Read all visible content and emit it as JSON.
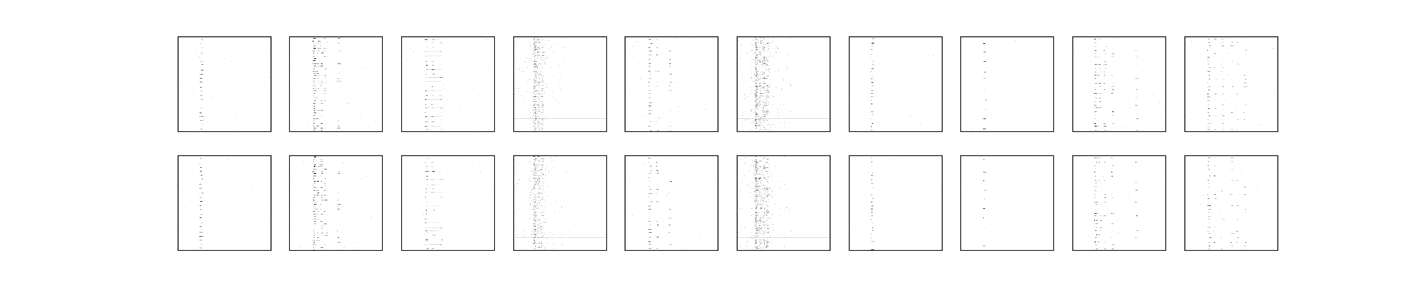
{
  "figure": {
    "background": "#ffffff",
    "frame_color": "#000000",
    "ink_color": "#000000"
  },
  "chart_data": {
    "type": "heatmap",
    "description_layout": "grid",
    "rows": 2,
    "cols": 10,
    "colormap": "gray_r",
    "axes_ticks": "none",
    "grid": false,
    "legend": "none",
    "panels": [
      {
        "id": "r0c0",
        "row": 0,
        "col": 0,
        "pattern": "single-column",
        "columns": [
          0.24
        ],
        "rows_count": 22,
        "intensity": 0.55,
        "noise": 0.02
      },
      {
        "id": "r0c1",
        "row": 0,
        "col": 1,
        "pattern": "multi-column-dense",
        "columns": [
          0.26,
          0.3,
          0.34,
          0.38,
          0.52
        ],
        "rows_count": 38,
        "intensity": 0.6,
        "noise": 0.03
      },
      {
        "id": "r0c2",
        "row": 0,
        "col": 2,
        "pattern": "column-with-trail",
        "columns": [
          0.26,
          0.33,
          0.42
        ],
        "rows_count": 22,
        "intensity": 0.5,
        "noise": 0.02
      },
      {
        "id": "r0c3",
        "row": 0,
        "col": 3,
        "pattern": "noise-column",
        "columns": [
          0.22,
          0.26,
          0.3
        ],
        "rows_count": 60,
        "intensity": 0.35,
        "noise": 0.12
      },
      {
        "id": "r0c4",
        "row": 0,
        "col": 4,
        "pattern": "multi-column",
        "columns": [
          0.26,
          0.34,
          0.48
        ],
        "rows_count": 24,
        "intensity": 0.55,
        "noise": 0.02
      },
      {
        "id": "r0c5",
        "row": 0,
        "col": 5,
        "pattern": "noise-column-heavy",
        "columns": [
          0.2,
          0.24,
          0.28,
          0.32
        ],
        "rows_count": 70,
        "intensity": 0.4,
        "noise": 0.18
      },
      {
        "id": "r0c6",
        "row": 0,
        "col": 6,
        "pattern": "single-column",
        "columns": [
          0.24
        ],
        "rows_count": 26,
        "intensity": 0.5,
        "noise": 0.01
      },
      {
        "id": "r0c7",
        "row": 0,
        "col": 7,
        "pattern": "single-column-sparse",
        "columns": [
          0.25
        ],
        "rows_count": 10,
        "intensity": 0.65,
        "noise": 0.005
      },
      {
        "id": "r0c8",
        "row": 0,
        "col": 8,
        "pattern": "multi-column",
        "columns": [
          0.24,
          0.28,
          0.34,
          0.42,
          0.68
        ],
        "rows_count": 26,
        "intensity": 0.55,
        "noise": 0.02
      },
      {
        "id": "r0c9",
        "row": 0,
        "col": 9,
        "pattern": "multi-column-wide",
        "columns": [
          0.25,
          0.32,
          0.4,
          0.5,
          0.56,
          0.64
        ],
        "rows_count": 26,
        "intensity": 0.45,
        "noise": 0.02
      },
      {
        "id": "r1c0",
        "row": 1,
        "col": 0,
        "pattern": "single-column",
        "columns": [
          0.24
        ],
        "rows_count": 22,
        "intensity": 0.55,
        "noise": 0.02
      },
      {
        "id": "r1c1",
        "row": 1,
        "col": 1,
        "pattern": "multi-column-dense",
        "columns": [
          0.26,
          0.3,
          0.34,
          0.38,
          0.52
        ],
        "rows_count": 40,
        "intensity": 0.62,
        "noise": 0.03
      },
      {
        "id": "r1c2",
        "row": 1,
        "col": 2,
        "pattern": "column-with-trail",
        "columns": [
          0.26,
          0.33,
          0.42
        ],
        "rows_count": 22,
        "intensity": 0.5,
        "noise": 0.02
      },
      {
        "id": "r1c3",
        "row": 1,
        "col": 3,
        "pattern": "noise-column",
        "columns": [
          0.22,
          0.26,
          0.3
        ],
        "rows_count": 60,
        "intensity": 0.35,
        "noise": 0.12
      },
      {
        "id": "r1c4",
        "row": 1,
        "col": 4,
        "pattern": "multi-column",
        "columns": [
          0.26,
          0.34,
          0.48
        ],
        "rows_count": 24,
        "intensity": 0.55,
        "noise": 0.02
      },
      {
        "id": "r1c5",
        "row": 1,
        "col": 5,
        "pattern": "noise-column-heavy",
        "columns": [
          0.2,
          0.24,
          0.28,
          0.32
        ],
        "rows_count": 70,
        "intensity": 0.4,
        "noise": 0.18
      },
      {
        "id": "r1c6",
        "row": 1,
        "col": 6,
        "pattern": "single-column",
        "columns": [
          0.24
        ],
        "rows_count": 26,
        "intensity": 0.5,
        "noise": 0.01
      },
      {
        "id": "r1c7",
        "row": 1,
        "col": 7,
        "pattern": "single-column-sparse",
        "columns": [
          0.25
        ],
        "rows_count": 10,
        "intensity": 0.65,
        "noise": 0.005
      },
      {
        "id": "r1c8",
        "row": 1,
        "col": 8,
        "pattern": "multi-column",
        "columns": [
          0.24,
          0.28,
          0.34,
          0.42,
          0.68
        ],
        "rows_count": 26,
        "intensity": 0.55,
        "noise": 0.02
      },
      {
        "id": "r1c9",
        "row": 1,
        "col": 9,
        "pattern": "multi-column-wide",
        "columns": [
          0.25,
          0.32,
          0.4,
          0.5,
          0.56,
          0.64
        ],
        "rows_count": 26,
        "intensity": 0.45,
        "noise": 0.02
      }
    ]
  }
}
